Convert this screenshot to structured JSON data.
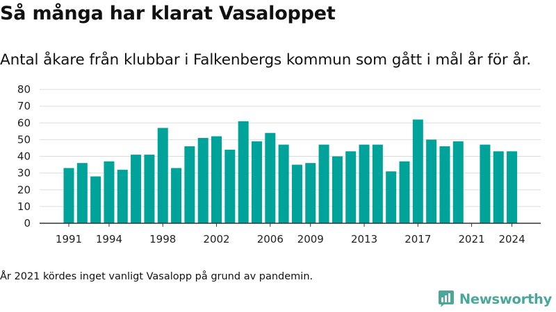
{
  "title": "Så många har klarat Vasaloppet",
  "subtitle": "Antal åkare från klubbar i Falkenbergs kommun som gått i mål år för år.",
  "note": "År 2021 kördes inget vanligt Vasalopp på grund av pandemin.",
  "brand": {
    "name": "Newsworthy",
    "icon": "newsworthy-logo-icon"
  },
  "colors": {
    "bar": "#00a399",
    "grid": "#dddddd",
    "axis": "#333333",
    "brand": "#4aa79a"
  },
  "chart_data": {
    "type": "bar",
    "title": "Så många har klarat Vasaloppet",
    "xlabel": "",
    "ylabel": "",
    "x": [
      1991,
      1992,
      1993,
      1994,
      1995,
      1996,
      1997,
      1998,
      1999,
      2000,
      2001,
      2002,
      2003,
      2004,
      2005,
      2006,
      2007,
      2008,
      2009,
      2010,
      2011,
      2012,
      2013,
      2014,
      2015,
      2016,
      2017,
      2018,
      2019,
      2020,
      2021,
      2022,
      2023,
      2024
    ],
    "values": [
      33,
      36,
      28,
      37,
      32,
      41,
      41,
      57,
      33,
      46,
      51,
      52,
      44,
      61,
      49,
      54,
      47,
      35,
      36,
      47,
      40,
      43,
      47,
      47,
      31,
      37,
      62,
      50,
      46,
      49,
      null,
      47,
      43,
      43
    ],
    "ylim": [
      0,
      80
    ],
    "yticks": [
      0,
      10,
      20,
      30,
      40,
      50,
      60,
      70,
      80
    ],
    "xtick_labels": [
      "1991",
      "1994",
      "1998",
      "2002",
      "2006",
      "2009",
      "2013",
      "2017",
      "2021",
      "2024"
    ],
    "grid": true,
    "legend": "none"
  }
}
